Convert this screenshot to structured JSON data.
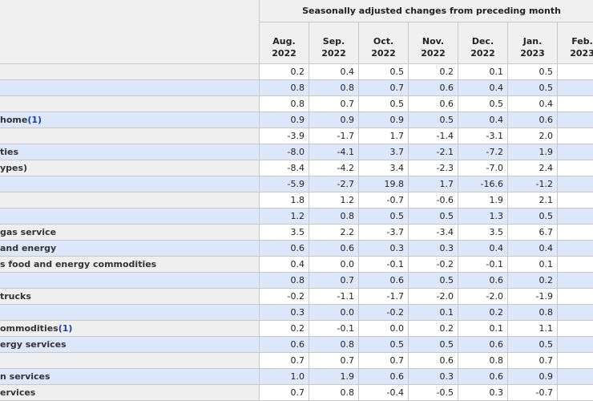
{
  "header": {
    "group_title": "Seasonally adjusted changes from preceding month",
    "columns": [
      {
        "month": "Aug.",
        "year": "2022"
      },
      {
        "month": "Sep.",
        "year": "2022"
      },
      {
        "month": "Oct.",
        "year": "2022"
      },
      {
        "month": "Nov.",
        "year": "2022"
      },
      {
        "month": "Dec.",
        "year": "2022"
      },
      {
        "month": "Jan.",
        "year": "2023"
      },
      {
        "month": "Feb.",
        "year": "2023"
      }
    ]
  },
  "table": {
    "rows": [
      {
        "label": null,
        "footnote": null,
        "cells": [
          "0.2",
          "0.4",
          "0.5",
          "0.2",
          "0.1",
          "0.5",
          null
        ]
      },
      {
        "label": null,
        "footnote": null,
        "cells": [
          "0.8",
          "0.8",
          "0.7",
          "0.6",
          "0.4",
          "0.5",
          null
        ]
      },
      {
        "label": null,
        "footnote": null,
        "cells": [
          "0.8",
          "0.7",
          "0.5",
          "0.6",
          "0.5",
          "0.4",
          null
        ]
      },
      {
        "label": "home",
        "footnote": "(1)",
        "cells": [
          "0.9",
          "0.9",
          "0.9",
          "0.5",
          "0.4",
          "0.6",
          null
        ]
      },
      {
        "label": null,
        "footnote": null,
        "cells": [
          "-3.9",
          "-1.7",
          "1.7",
          "-1.4",
          "-3.1",
          "2.0",
          "-"
        ]
      },
      {
        "label": "ties",
        "footnote": null,
        "cells": [
          "-8.0",
          "-4.1",
          "3.7",
          "-2.1",
          "-7.2",
          "1.9",
          "-"
        ]
      },
      {
        "label": "ypes)",
        "footnote": null,
        "cells": [
          "-8.4",
          "-4.2",
          "3.4",
          "-2.3",
          "-7.0",
          "2.4",
          null
        ]
      },
      {
        "label": null,
        "footnote": null,
        "cells": [
          "-5.9",
          "-2.7",
          "19.8",
          "1.7",
          "-16.6",
          "-1.2",
          "-"
        ]
      },
      {
        "label": null,
        "footnote": null,
        "cells": [
          "1.8",
          "1.2",
          "-0.7",
          "-0.6",
          "1.9",
          "2.1",
          "-"
        ]
      },
      {
        "label": null,
        "footnote": null,
        "cells": [
          "1.2",
          "0.8",
          "0.5",
          "0.5",
          "1.3",
          "0.5",
          null
        ]
      },
      {
        "label": "gas service",
        "footnote": null,
        "cells": [
          "3.5",
          "2.2",
          "-3.7",
          "-3.4",
          "3.5",
          "6.7",
          null
        ]
      },
      {
        "label": "and energy",
        "footnote": null,
        "cells": [
          "0.6",
          "0.6",
          "0.3",
          "0.3",
          "0.4",
          "0.4",
          null
        ]
      },
      {
        "label": "s food and energy commodities",
        "footnote": null,
        "cells": [
          "0.4",
          "0.0",
          "-0.1",
          "-0.2",
          "-0.1",
          "0.1",
          null
        ]
      },
      {
        "label": null,
        "footnote": null,
        "cells": [
          "0.8",
          "0.7",
          "0.6",
          "0.5",
          "0.6",
          "0.2",
          null
        ]
      },
      {
        "label": "trucks",
        "footnote": null,
        "cells": [
          "-0.2",
          "-1.1",
          "-1.7",
          "-2.0",
          "-2.0",
          "-1.9",
          "-"
        ]
      },
      {
        "label": null,
        "footnote": null,
        "cells": [
          "0.3",
          "0.0",
          "-0.2",
          "0.1",
          "0.2",
          "0.8",
          null
        ]
      },
      {
        "label": "ommodities",
        "footnote": "(1)",
        "cells": [
          "0.2",
          "-0.1",
          "0.0",
          "0.2",
          "0.1",
          "1.1",
          null
        ]
      },
      {
        "label": "ergy services",
        "footnote": null,
        "cells": [
          "0.6",
          "0.8",
          "0.5",
          "0.5",
          "0.6",
          "0.5",
          null
        ]
      },
      {
        "label": null,
        "footnote": null,
        "cells": [
          "0.7",
          "0.7",
          "0.7",
          "0.6",
          "0.8",
          "0.7",
          null
        ]
      },
      {
        "label": "n services",
        "footnote": null,
        "cells": [
          "1.0",
          "1.9",
          "0.6",
          "0.3",
          "0.6",
          "0.9",
          null
        ]
      },
      {
        "label": "ervices",
        "footnote": null,
        "cells": [
          "0.7",
          "0.8",
          "-0.4",
          "-0.5",
          "0.3",
          "-0.7",
          "-"
        ]
      }
    ]
  }
}
